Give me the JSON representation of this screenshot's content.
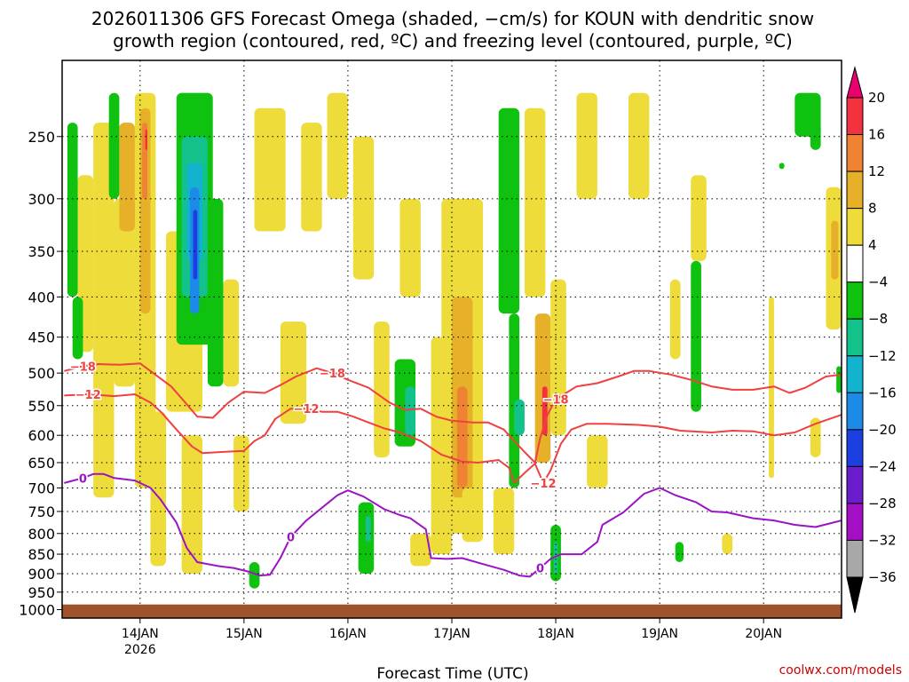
{
  "chart_data": {
    "type": "heatmap",
    "title_line1": "2026011306 GFS Forecast Omega (shaded, −cm/s) for KOUN with dendritic snow",
    "title_line2": "growth region (contoured, red, ºC) and freezing level (contoured, purple, ºC)",
    "xlabel": "Forecast Time (UTC)",
    "credit": "coolwx.com/models",
    "x_range": [
      "2026-01-13T06",
      "2026-01-20T18"
    ],
    "y_range": [
      1025,
      200
    ],
    "y_scale": "log",
    "grid": true,
    "y_ticks": [
      250,
      300,
      350,
      400,
      450,
      500,
      550,
      600,
      650,
      700,
      750,
      800,
      850,
      900,
      950,
      1000
    ],
    "y_tick_labels": [
      "250",
      "300",
      "350",
      "400",
      "450",
      "500",
      "550",
      "600",
      "650",
      "700",
      "750",
      "800",
      "850",
      "900",
      "950",
      "1000"
    ],
    "x_ticks": [
      {
        "day": 14,
        "label": "14JAN",
        "sub": "2026"
      },
      {
        "day": 15,
        "label": "15JAN",
        "sub": ""
      },
      {
        "day": 16,
        "label": "16JAN",
        "sub": ""
      },
      {
        "day": 17,
        "label": "17JAN",
        "sub": ""
      },
      {
        "day": 18,
        "label": "18JAN",
        "sub": ""
      },
      {
        "day": 19,
        "label": "19JAN",
        "sub": ""
      },
      {
        "day": 20,
        "label": "20JAN",
        "sub": ""
      }
    ],
    "colorbar": {
      "labels": [
        "20",
        "16",
        "12",
        "8",
        "4",
        "−4",
        "−8",
        "−12",
        "−16",
        "−20",
        "−24",
        "−28",
        "−32",
        "−36"
      ],
      "colors": [
        "#e8006e",
        "#f2333f",
        "#ef8233",
        "#e6b029",
        "#eedc3b",
        "#ffffff",
        "#0fc20f",
        "#13c28a",
        "#11b3cf",
        "#1c8be8",
        "#1c3fe0",
        "#6a1dcc",
        "#a30fc4",
        "#a8a8a8",
        "#000000"
      ]
    },
    "colors": {
      "dgz": "#f04040",
      "freezing": "#9b14c4",
      "ground": "#a0522d"
    },
    "contours": [
      {
        "kind": "dgz",
        "value": "-18",
        "label": "−18",
        "points": [
          [
            13.27,
            497
          ],
          [
            13.45,
            490
          ],
          [
            13.6,
            487
          ],
          [
            13.8,
            488
          ],
          [
            14.0,
            486
          ],
          [
            14.1,
            497
          ],
          [
            14.3,
            520
          ],
          [
            14.45,
            548
          ],
          [
            14.55,
            568
          ],
          [
            14.7,
            570
          ],
          [
            14.85,
            545
          ],
          [
            15.0,
            528
          ],
          [
            15.2,
            530
          ],
          [
            15.35,
            518
          ],
          [
            15.5,
            505
          ],
          [
            15.7,
            493
          ],
          [
            15.85,
            500
          ],
          [
            16.0,
            510
          ],
          [
            16.2,
            522
          ],
          [
            16.4,
            545
          ],
          [
            16.55,
            557
          ],
          [
            16.7,
            555
          ],
          [
            16.85,
            568
          ],
          [
            17.0,
            575
          ],
          [
            17.2,
            578
          ],
          [
            17.35,
            578
          ],
          [
            17.5,
            590
          ],
          [
            17.6,
            610
          ],
          [
            17.7,
            630
          ],
          [
            17.8,
            650
          ],
          [
            17.85,
            605
          ],
          [
            17.92,
            565
          ],
          [
            18.0,
            540
          ],
          [
            18.2,
            520
          ],
          [
            18.4,
            515
          ],
          [
            18.6,
            505
          ],
          [
            18.75,
            497
          ],
          [
            18.9,
            497
          ],
          [
            19.1,
            502
          ],
          [
            19.3,
            510
          ],
          [
            19.5,
            520
          ],
          [
            19.7,
            525
          ],
          [
            19.9,
            525
          ],
          [
            20.1,
            520
          ],
          [
            20.25,
            530
          ],
          [
            20.4,
            522
          ],
          [
            20.6,
            505
          ],
          [
            20.75,
            502
          ]
        ]
      },
      {
        "kind": "dgz",
        "value": "-12",
        "label": "−12",
        "points": [
          [
            13.27,
            534
          ],
          [
            13.5,
            532
          ],
          [
            13.75,
            535
          ],
          [
            13.95,
            532
          ],
          [
            14.1,
            545
          ],
          [
            14.2,
            560
          ],
          [
            14.35,
            590
          ],
          [
            14.5,
            620
          ],
          [
            14.6,
            632
          ],
          [
            14.8,
            630
          ],
          [
            15.0,
            628
          ],
          [
            15.1,
            610
          ],
          [
            15.2,
            600
          ],
          [
            15.3,
            572
          ],
          [
            15.45,
            555
          ],
          [
            15.6,
            555
          ],
          [
            15.75,
            560
          ],
          [
            15.9,
            560
          ],
          [
            16.05,
            568
          ],
          [
            16.2,
            578
          ],
          [
            16.35,
            588
          ],
          [
            16.5,
            595
          ],
          [
            16.7,
            610
          ],
          [
            16.9,
            635
          ],
          [
            17.1,
            648
          ],
          [
            17.25,
            650
          ],
          [
            17.45,
            645
          ],
          [
            17.55,
            660
          ],
          [
            17.6,
            690
          ],
          [
            17.7,
            670
          ],
          [
            17.8,
            652
          ],
          [
            17.88,
            690
          ],
          [
            17.95,
            665
          ],
          [
            18.05,
            615
          ],
          [
            18.15,
            590
          ],
          [
            18.3,
            580
          ],
          [
            18.5,
            580
          ],
          [
            18.8,
            582
          ],
          [
            19.0,
            585
          ],
          [
            19.2,
            592
          ],
          [
            19.5,
            595
          ],
          [
            19.7,
            592
          ],
          [
            19.9,
            593
          ],
          [
            20.1,
            600
          ],
          [
            20.3,
            595
          ],
          [
            20.5,
            580
          ],
          [
            20.75,
            565
          ]
        ]
      },
      {
        "kind": "freezing",
        "value": "0",
        "label": "0",
        "points": [
          [
            13.27,
            690
          ],
          [
            13.45,
            680
          ],
          [
            13.55,
            672
          ],
          [
            13.65,
            672
          ],
          [
            13.75,
            680
          ],
          [
            13.95,
            685
          ],
          [
            14.1,
            700
          ],
          [
            14.2,
            725
          ],
          [
            14.35,
            775
          ],
          [
            14.45,
            835
          ],
          [
            14.55,
            870
          ],
          [
            14.75,
            880
          ],
          [
            14.9,
            885
          ],
          [
            15.05,
            895
          ],
          [
            15.15,
            905
          ],
          [
            15.25,
            903
          ],
          [
            15.35,
            860
          ],
          [
            15.45,
            808
          ],
          [
            15.6,
            770
          ],
          [
            15.75,
            742
          ],
          [
            15.9,
            715
          ],
          [
            16.0,
            705
          ],
          [
            16.15,
            718
          ],
          [
            16.35,
            745
          ],
          [
            16.5,
            758
          ],
          [
            16.6,
            765
          ],
          [
            16.75,
            790
          ],
          [
            16.8,
            860
          ],
          [
            16.95,
            862
          ],
          [
            17.1,
            860
          ],
          [
            17.3,
            875
          ],
          [
            17.5,
            890
          ],
          [
            17.65,
            905
          ],
          [
            17.75,
            908
          ],
          [
            17.85,
            885
          ],
          [
            17.95,
            862
          ],
          [
            18.05,
            850
          ],
          [
            18.25,
            850
          ],
          [
            18.4,
            820
          ],
          [
            18.45,
            780
          ],
          [
            18.65,
            752
          ],
          [
            18.85,
            712
          ],
          [
            19.0,
            700
          ],
          [
            19.15,
            715
          ],
          [
            19.35,
            730
          ],
          [
            19.5,
            750
          ],
          [
            19.65,
            752
          ],
          [
            19.9,
            765
          ],
          [
            20.1,
            770
          ],
          [
            20.3,
            780
          ],
          [
            20.5,
            785
          ],
          [
            20.75,
            770
          ]
        ]
      }
    ],
    "ground_level": 985
  }
}
